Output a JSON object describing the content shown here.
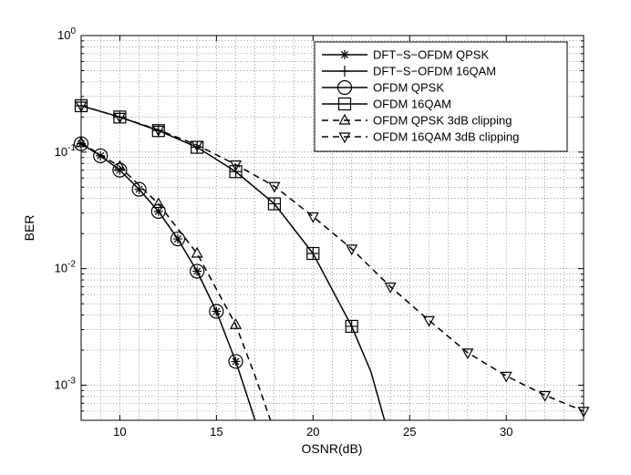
{
  "chart_data": {
    "type": "line",
    "xlabel": "OSNR(dB)",
    "ylabel": "BER",
    "xlim": [
      8,
      34
    ],
    "ylim": [
      0.0005,
      1
    ],
    "yscale": "log",
    "grid": true,
    "legend_position": "top-right",
    "x_ticks": [
      10,
      15,
      20,
      25,
      30
    ],
    "y_ticks": [
      {
        "value": 1,
        "base": "10",
        "exp": "0"
      },
      {
        "value": 0.1,
        "base": "10",
        "exp": "-1"
      },
      {
        "value": 0.01,
        "base": "10",
        "exp": "-2"
      },
      {
        "value": 0.001,
        "base": "10",
        "exp": "-3"
      }
    ],
    "series": [
      {
        "name": "DFT−S−OFDM QPSK",
        "marker": "star",
        "dash": "solid",
        "curve": [
          [
            8,
            0.118
          ],
          [
            9,
            0.093
          ],
          [
            10,
            0.07
          ],
          [
            11,
            0.048
          ],
          [
            12,
            0.031
          ],
          [
            13,
            0.018
          ],
          [
            14,
            0.0095
          ],
          [
            15,
            0.0043
          ],
          [
            16,
            0.0016
          ],
          [
            16.5,
            0.0009
          ],
          [
            17.0,
            0.0005
          ]
        ],
        "points": [
          [
            8,
            0.118
          ],
          [
            9,
            0.093
          ],
          [
            10,
            0.07
          ],
          [
            11,
            0.048
          ],
          [
            12,
            0.031
          ],
          [
            13,
            0.018
          ],
          [
            14,
            0.0095
          ],
          [
            15,
            0.0043
          ],
          [
            16,
            0.0016
          ]
        ]
      },
      {
        "name": "DFT−S−OFDM 16QAM",
        "marker": "plus",
        "dash": "solid",
        "curve": [
          [
            8,
            0.25
          ],
          [
            10,
            0.2
          ],
          [
            12,
            0.153
          ],
          [
            14,
            0.11
          ],
          [
            16,
            0.068
          ],
          [
            18,
            0.036
          ],
          [
            20,
            0.0135
          ],
          [
            22,
            0.0032
          ],
          [
            23,
            0.0013
          ],
          [
            23.7,
            0.0005
          ]
        ],
        "points": [
          [
            8,
            0.25
          ],
          [
            10,
            0.2
          ],
          [
            12,
            0.153
          ],
          [
            14,
            0.11
          ],
          [
            16,
            0.068
          ],
          [
            18,
            0.036
          ],
          [
            20,
            0.0135
          ],
          [
            22,
            0.0032
          ]
        ]
      },
      {
        "name": "OFDM QPSK",
        "marker": "circle",
        "dash": "solid",
        "curve": [],
        "points": [
          [
            8,
            0.118
          ],
          [
            9,
            0.093
          ],
          [
            10,
            0.07
          ],
          [
            11,
            0.048
          ],
          [
            12,
            0.031
          ],
          [
            13,
            0.018
          ],
          [
            14,
            0.0095
          ],
          [
            15,
            0.0043
          ],
          [
            16,
            0.0016
          ]
        ]
      },
      {
        "name": "OFDM 16QAM",
        "marker": "square",
        "dash": "solid",
        "curve": [],
        "points": [
          [
            8,
            0.25
          ],
          [
            10,
            0.2
          ],
          [
            12,
            0.153
          ],
          [
            14,
            0.11
          ],
          [
            16,
            0.068
          ],
          [
            18,
            0.036
          ],
          [
            20,
            0.0135
          ],
          [
            22,
            0.0032
          ]
        ]
      },
      {
        "name": "OFDM QPSK 3dB clipping",
        "marker": "triangle-up",
        "dash": "dashed",
        "curve": [
          [
            8,
            0.12
          ],
          [
            10,
            0.075
          ],
          [
            12,
            0.036
          ],
          [
            14,
            0.0135
          ],
          [
            16,
            0.0033
          ],
          [
            17,
            0.0012
          ],
          [
            17.8,
            0.0005
          ]
        ],
        "points": [
          [
            8,
            0.12
          ],
          [
            10,
            0.075
          ],
          [
            12,
            0.036
          ],
          [
            14,
            0.0135
          ],
          [
            16,
            0.0033
          ]
        ]
      },
      {
        "name": "OFDM 16QAM 3dB clipping",
        "marker": "triangle-down",
        "dash": "dashed",
        "curve": [
          [
            8,
            0.25
          ],
          [
            10,
            0.2
          ],
          [
            12,
            0.155
          ],
          [
            14,
            0.115
          ],
          [
            16,
            0.078
          ],
          [
            18,
            0.051
          ],
          [
            20,
            0.028
          ],
          [
            22,
            0.0148
          ],
          [
            24,
            0.007
          ],
          [
            26,
            0.0036
          ],
          [
            28,
            0.0019
          ],
          [
            30,
            0.0012
          ],
          [
            32,
            0.00082
          ],
          [
            34,
            0.0006
          ]
        ],
        "points": [
          [
            8,
            0.25
          ],
          [
            10,
            0.2
          ],
          [
            12,
            0.155
          ],
          [
            14,
            0.115
          ],
          [
            16,
            0.078
          ],
          [
            18,
            0.051
          ],
          [
            20,
            0.028
          ],
          [
            22,
            0.0148
          ],
          [
            24,
            0.007
          ],
          [
            26,
            0.0036
          ],
          [
            28,
            0.0019
          ],
          [
            30,
            0.0012
          ],
          [
            32,
            0.00082
          ],
          [
            34,
            0.0006
          ]
        ]
      }
    ]
  }
}
